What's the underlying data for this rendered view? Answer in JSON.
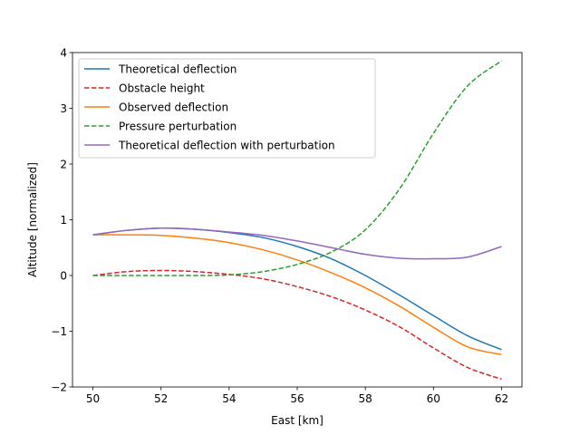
{
  "chart_data": {
    "type": "line",
    "title": "",
    "xlabel": "East [km]",
    "ylabel": "Altitude [normalized]",
    "xlim": [
      49.4,
      62.6
    ],
    "ylim": [
      -2,
      4
    ],
    "xticks": [
      50,
      52,
      54,
      56,
      58,
      60,
      62
    ],
    "yticks": [
      -2,
      -1,
      0,
      1,
      2,
      3,
      4
    ],
    "grid": false,
    "legend_position": "top-left",
    "x": [
      50,
      51,
      52,
      53,
      54,
      55,
      56,
      57,
      58,
      59,
      60,
      61,
      62
    ],
    "series": [
      {
        "name": "Theoretical deflection",
        "color": "#1f77b4",
        "dash": "solid",
        "values": [
          0.73,
          0.81,
          0.85,
          0.83,
          0.77,
          0.68,
          0.52,
          0.3,
          0.0,
          -0.35,
          -0.72,
          -1.08,
          -1.33
        ]
      },
      {
        "name": "Obstacle height",
        "color": "#d62728",
        "dash": "dashed",
        "values": [
          0.0,
          0.07,
          0.09,
          0.07,
          0.02,
          -0.06,
          -0.2,
          -0.38,
          -0.62,
          -0.92,
          -1.3,
          -1.65,
          -1.86
        ]
      },
      {
        "name": "Observed deflection",
        "color": "#ff7f0e",
        "dash": "solid",
        "values": [
          0.73,
          0.73,
          0.72,
          0.67,
          0.59,
          0.46,
          0.28,
          0.05,
          -0.22,
          -0.55,
          -0.93,
          -1.28,
          -1.42
        ]
      },
      {
        "name": "Pressure perturbation",
        "color": "#2ca02c",
        "dash": "dashed",
        "values": [
          0.0,
          0.0,
          0.0,
          0.0,
          0.01,
          0.07,
          0.2,
          0.42,
          0.82,
          1.55,
          2.55,
          3.4,
          3.85
        ]
      },
      {
        "name": "Theoretical deflection with perturbation",
        "color": "#9467bd",
        "dash": "solid",
        "values": [
          0.73,
          0.81,
          0.85,
          0.83,
          0.78,
          0.72,
          0.62,
          0.5,
          0.38,
          0.31,
          0.3,
          0.33,
          0.52
        ]
      }
    ]
  }
}
